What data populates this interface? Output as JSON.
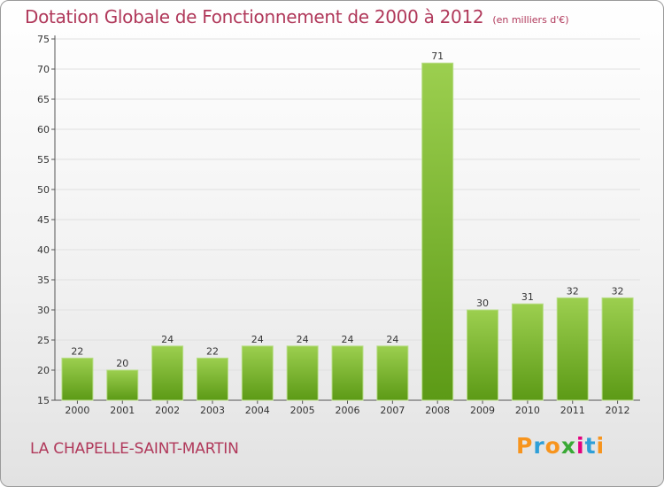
{
  "header": {
    "title": "Dotation Globale de Fonctionnement de 2000 à 2012",
    "subtitle": "(en milliers d'€)"
  },
  "commune": "LA CHAPELLE-SAINT-MARTIN",
  "logo": {
    "letters": [
      "P",
      "r",
      "o",
      "x",
      "i",
      "t",
      "i"
    ]
  },
  "colors": {
    "title": "#b0385a",
    "bar_top": "#9ccf4f",
    "bar_bottom": "#5c9a16",
    "grid": "#e0e0e0"
  },
  "chart_data": {
    "type": "bar",
    "title": "Dotation Globale de Fonctionnement de 2000 à 2012",
    "subtitle": "(en milliers d'€)",
    "categories": [
      "2000",
      "2001",
      "2002",
      "2003",
      "2004",
      "2005",
      "2006",
      "2007",
      "2008",
      "2009",
      "2010",
      "2011",
      "2012"
    ],
    "values": [
      22,
      20,
      24,
      22,
      24,
      24,
      24,
      24,
      71,
      30,
      31,
      32,
      32
    ],
    "ylim": [
      15,
      75
    ],
    "yticks": [
      15,
      20,
      25,
      30,
      35,
      40,
      45,
      50,
      55,
      60,
      65,
      70,
      75
    ],
    "grid": "horizontal",
    "legend": "none"
  }
}
